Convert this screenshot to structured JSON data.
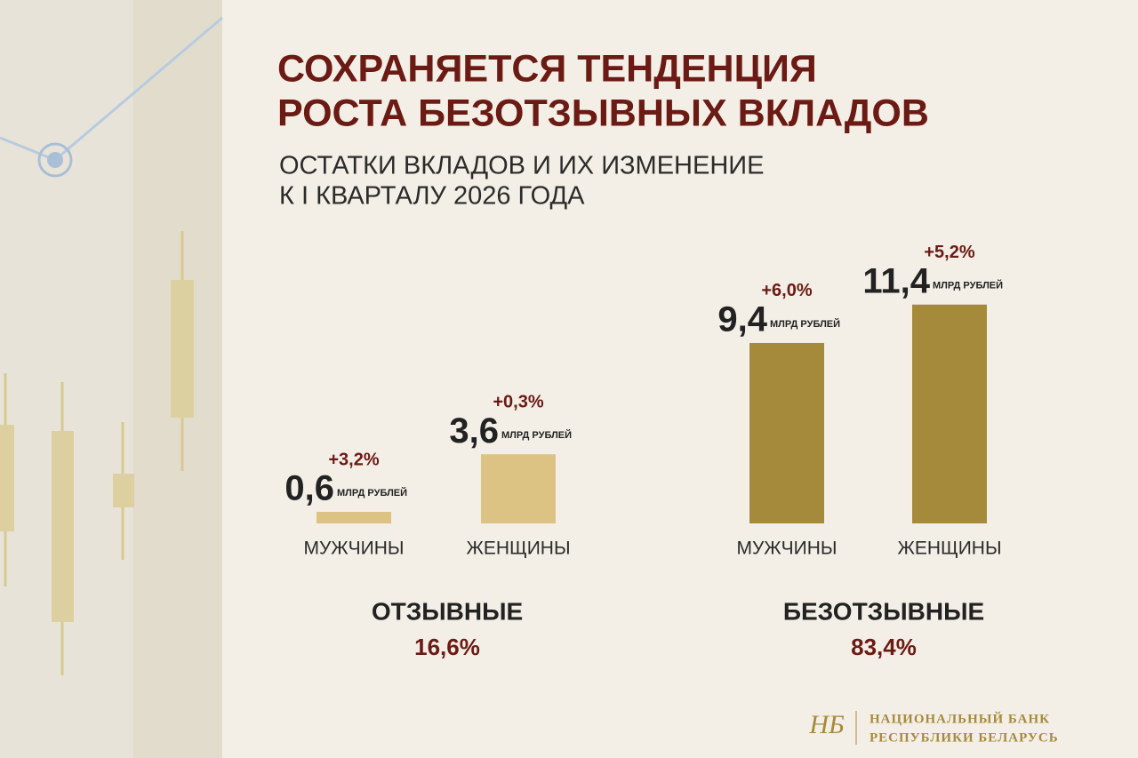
{
  "header": {
    "title": [
      "СОХРАНЯЕТСЯ ТЕНДЕНЦИЯ",
      "РОСТА БЕЗОТЗЫВНЫХ ВКЛАДОВ"
    ],
    "subtitle": [
      "ОСТАТКИ ВКЛАДОВ И ИХ ИЗМЕНЕНИЕ",
      "К I КВАРТАЛУ 2026 ГОДА"
    ]
  },
  "chart_data": [
    {
      "type": "bar",
      "title": "ОТЗЫВНЫЕ",
      "subtitle": "16,6%",
      "categories": [
        "МУЖЧИНЫ",
        "ЖЕНЩИНЫ"
      ],
      "values": [
        0.6,
        3.6
      ],
      "value_labels": [
        "0,6",
        "3,6"
      ],
      "unit": "МЛРД РУБЛЕЙ",
      "annotations": [
        "+3,2%",
        "+0,3%"
      ],
      "color": "#dcc283"
    },
    {
      "type": "bar",
      "title": "БЕЗОТЗЫВНЫЕ",
      "subtitle": "83,4%",
      "categories": [
        "МУЖЧИНЫ",
        "ЖЕНЩИНЫ"
      ],
      "values": [
        9.4,
        11.4
      ],
      "value_labels": [
        "9,4",
        "11,4"
      ],
      "unit": "МЛРД РУБЛЕЙ",
      "annotations": [
        "+6,0%",
        "+5,2%"
      ],
      "color": "#a68a3c"
    }
  ],
  "footer": {
    "logo": [
      "НАЦИОНАЛЬНЫЙ БАНК",
      "РЕСПУБЛИКИ БЕЛАРУСЬ"
    ]
  }
}
